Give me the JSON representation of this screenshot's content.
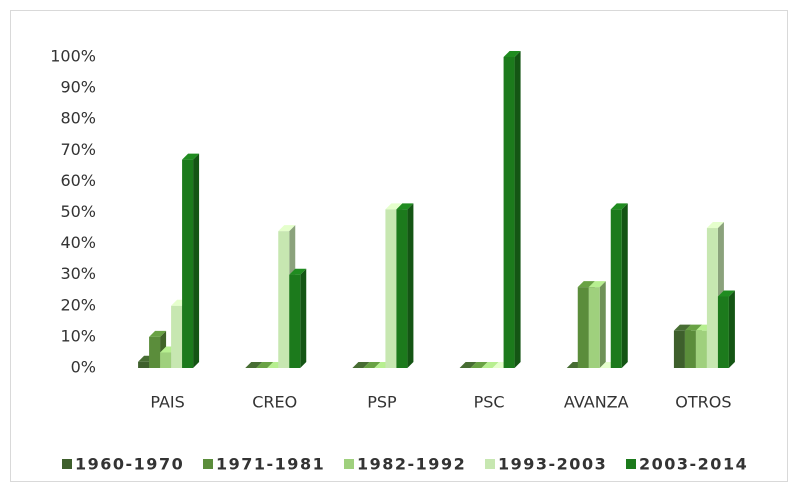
{
  "chart_data": {
    "type": "bar3d",
    "categories": [
      "PAIS",
      "CREO",
      "PSP",
      "PSC",
      "AVANZA",
      "OTROS"
    ],
    "series": [
      {
        "name": "1960-1970",
        "color": "#3e5f2c",
        "values": [
          2,
          0,
          0,
          0,
          0,
          12
        ]
      },
      {
        "name": "1971-1981",
        "color": "#5b8d3b",
        "values": [
          10,
          0,
          0,
          0,
          26,
          12
        ]
      },
      {
        "name": "1982-1992",
        "color": "#9fd07d",
        "values": [
          5,
          0,
          0,
          0,
          26,
          12
        ]
      },
      {
        "name": "1993-2003",
        "color": "#c7e7b1",
        "values": [
          20,
          44,
          51,
          0,
          0,
          45
        ]
      },
      {
        "name": "2003-2014",
        "color": "#1c7a1c",
        "values": [
          67,
          30,
          51,
          100,
          51,
          23
        ]
      }
    ],
    "ylim": [
      0,
      100
    ],
    "yticks": [
      {
        "value": 0,
        "label": "0%"
      },
      {
        "value": 10,
        "label": "10%"
      },
      {
        "value": 20,
        "label": "20%"
      },
      {
        "value": 30,
        "label": "30%"
      },
      {
        "value": 40,
        "label": "40%"
      },
      {
        "value": 50,
        "label": "50%"
      },
      {
        "value": 60,
        "label": "60%"
      },
      {
        "value": 70,
        "label": "70%"
      },
      {
        "value": 80,
        "label": "80%"
      },
      {
        "value": 90,
        "label": "90%"
      },
      {
        "value": 100,
        "label": "100%"
      }
    ],
    "grid": false,
    "legend": "bottom"
  }
}
